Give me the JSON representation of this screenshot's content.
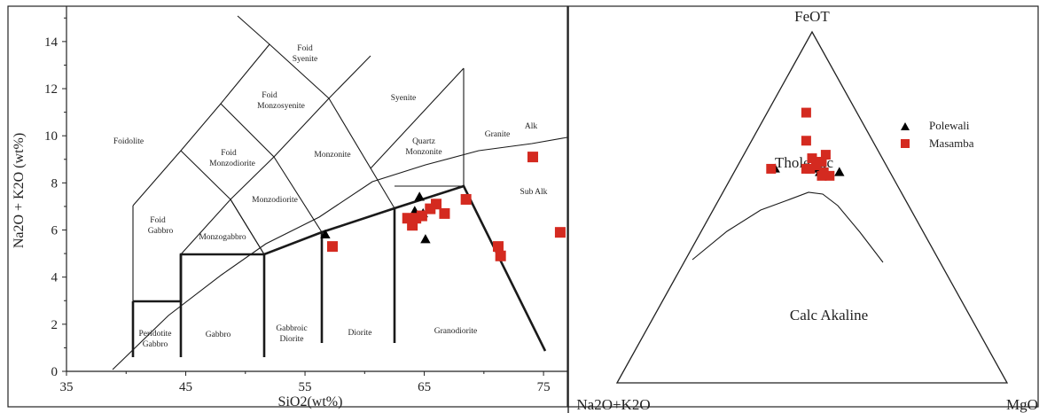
{
  "chart_data": [
    {
      "type": "scatter",
      "title": "",
      "xlabel": "SiO2(wt%)",
      "ylabel": "Na2O + K2O (wt%)",
      "xlim": [
        35,
        77
      ],
      "ylim": [
        0,
        15.5
      ],
      "x_ticks": [
        "35",
        "45",
        "55",
        "65",
        "75"
      ],
      "y_ticks": [
        "0",
        "2",
        "4",
        "6",
        "8",
        "10",
        "12",
        "14"
      ],
      "field_labels": {
        "foidolite": "Foidolite",
        "foid_syenite_1": "Foid",
        "foid_syenite_2": "Syenite",
        "foid_monzosyenite_1": "Foid",
        "foid_monzosyenite_2": "Monzosyenite",
        "syenite": "Syenite",
        "foid_monzodiorite_1": "Foid",
        "foid_monzodiorite_2": "Monzodiorite",
        "monzonite": "Monzonite",
        "quartz_monzonite_1": "Quartz",
        "quartz_monzonite_2": "Monzonite",
        "granite": "Granite",
        "alk": "Alk",
        "sub_alk": "Sub Alk",
        "foid_gabbro_1": "Foid",
        "foid_gabbro_2": "Gabbro",
        "monzodiorite": "Monzodiorite",
        "monzogabbro": "Monzogabbro",
        "peridotite_gabbro_1": "Peridotite",
        "peridotite_gabbro_2": "Gabbro",
        "gabbro": "Gabbro",
        "gabbroic_diorite_1": "Gabbroic",
        "gabbroic_diorite_2": "Diorite",
        "diorite": "Diorite",
        "granodiorite": "Granodiorite"
      },
      "series": [
        {
          "marker": "triangle",
          "color": "#000000",
          "points": [
            [
              56.7,
              5.8
            ],
            [
              64.2,
              6.8
            ],
            [
              64.6,
              7.4
            ],
            [
              64.9,
              6.7
            ],
            [
              65.1,
              5.6
            ]
          ]
        },
        {
          "marker": "square",
          "color": "#d42a20",
          "points": [
            [
              57.3,
              5.3
            ],
            [
              63.6,
              6.5
            ],
            [
              64.0,
              6.2
            ],
            [
              64.3,
              6.5
            ],
            [
              64.8,
              6.6
            ],
            [
              65.5,
              6.9
            ],
            [
              66.0,
              7.1
            ],
            [
              66.7,
              6.7
            ],
            [
              68.5,
              7.3
            ],
            [
              71.2,
              5.3
            ],
            [
              71.4,
              4.9
            ],
            [
              74.1,
              9.1
            ],
            [
              76.4,
              5.9
            ]
          ]
        }
      ]
    },
    {
      "type": "scatter",
      "subtype": "ternary",
      "title": "",
      "vertices": {
        "top": "FeOT",
        "left": "Na2O+K2O",
        "right": "MgO"
      },
      "region_labels": {
        "upper": "Tholeiitic",
        "lower": "Calc Akaline"
      },
      "legend": {
        "placement": "right",
        "entries": [
          "Polewali",
          "Masamba"
        ]
      },
      "series": [
        {
          "name": "Polewali",
          "marker": "triangle",
          "color": "#000000",
          "points": [
            [
              0.27,
              0.6,
              0.13
            ],
            [
              0.22,
              0.6,
              0.18
            ],
            [
              0.21,
              0.61,
              0.18
            ],
            [
              0.2,
              0.61,
              0.19
            ],
            [
              0.1,
              0.61,
              0.29
            ]
          ]
        },
        {
          "name": "Masamba",
          "marker": "square",
          "color": "#d42a20",
          "points": [
            [
              0.1,
              0.77,
              0.13
            ],
            [
              0.14,
              0.69,
              0.17
            ],
            [
              0.21,
              0.65,
              0.14
            ],
            [
              0.23,
              0.59,
              0.18
            ],
            [
              0.25,
              0.59,
              0.16
            ],
            [
              0.23,
              0.6,
              0.17
            ],
            [
              0.21,
              0.63,
              0.16
            ],
            [
              0.18,
              0.61,
              0.21
            ],
            [
              0.2,
              0.62,
              0.18
            ],
            [
              0.18,
              0.64,
              0.18
            ],
            [
              0.19,
              0.61,
              0.2
            ],
            [
              0.09,
              0.61,
              0.3
            ]
          ]
        }
      ]
    }
  ]
}
